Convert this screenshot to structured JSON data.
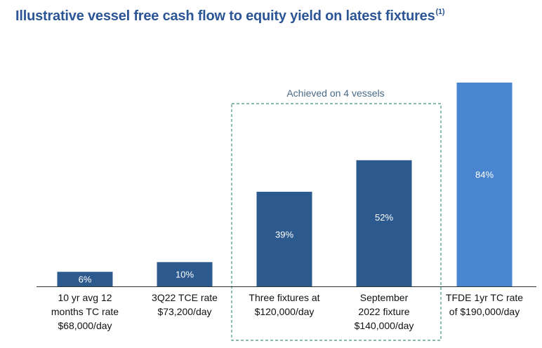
{
  "chart_data": {
    "type": "bar",
    "title": "Illustrative vessel free cash flow to equity yield on latest fixtures",
    "title_footnote": "(1)",
    "categories": [
      [
        "10 yr avg 12",
        "months TC rate",
        "$68,000/day"
      ],
      [
        "3Q22 TCE rate",
        "$73,200/day"
      ],
      [
        "Three fixtures at",
        "$120,000/day"
      ],
      [
        "September",
        "2022 fixture",
        "$140,000/day"
      ],
      [
        "TFDE 1yr TC rate",
        "of $190,000/day"
      ]
    ],
    "values": [
      6,
      10,
      39,
      52,
      84
    ],
    "value_labels": [
      "6%",
      "10%",
      "39%",
      "52%",
      "84%"
    ],
    "ylim": [
      0,
      86
    ],
    "grid": false,
    "colors": [
      "#2d5a8e",
      "#2d5a8e",
      "#2d5a8e",
      "#2d5a8e",
      "#4a86d0"
    ],
    "annotation": {
      "text": "Achieved on 4 vessels",
      "covers": [
        2,
        3
      ],
      "border_color": "#5fa88a"
    }
  }
}
